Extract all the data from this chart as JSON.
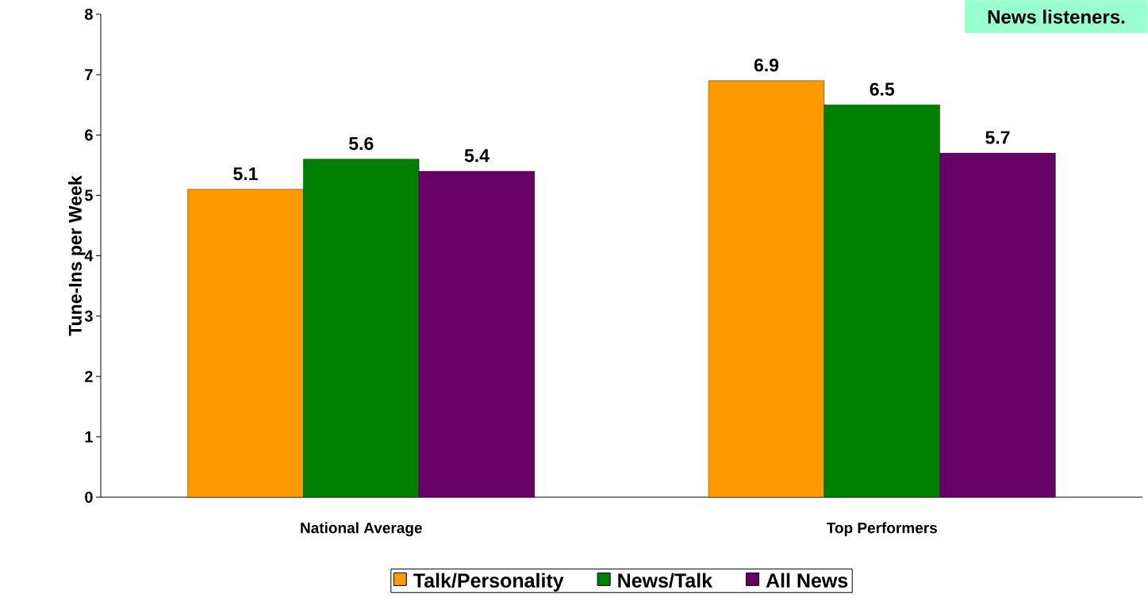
{
  "chart_data": {
    "type": "bar",
    "ylabel": "Tune-Ins per Week",
    "categories": [
      "National Average",
      "Top Performers"
    ],
    "series": [
      {
        "name": "Talk/Personality",
        "color": "#ff9900",
        "values": [
          5.1,
          6.9
        ]
      },
      {
        "name": "News/Talk",
        "color": "#008000",
        "values": [
          5.6,
          6.5
        ]
      },
      {
        "name": "All News",
        "color": "#660066",
        "values": [
          5.4,
          5.7
        ]
      }
    ],
    "ylim": [
      0,
      8
    ],
    "yticks": [
      0,
      1,
      2,
      3,
      4,
      5,
      6,
      7,
      8
    ],
    "data_labels": true,
    "legend": "bottom",
    "annotations": [
      "News listeners."
    ]
  }
}
